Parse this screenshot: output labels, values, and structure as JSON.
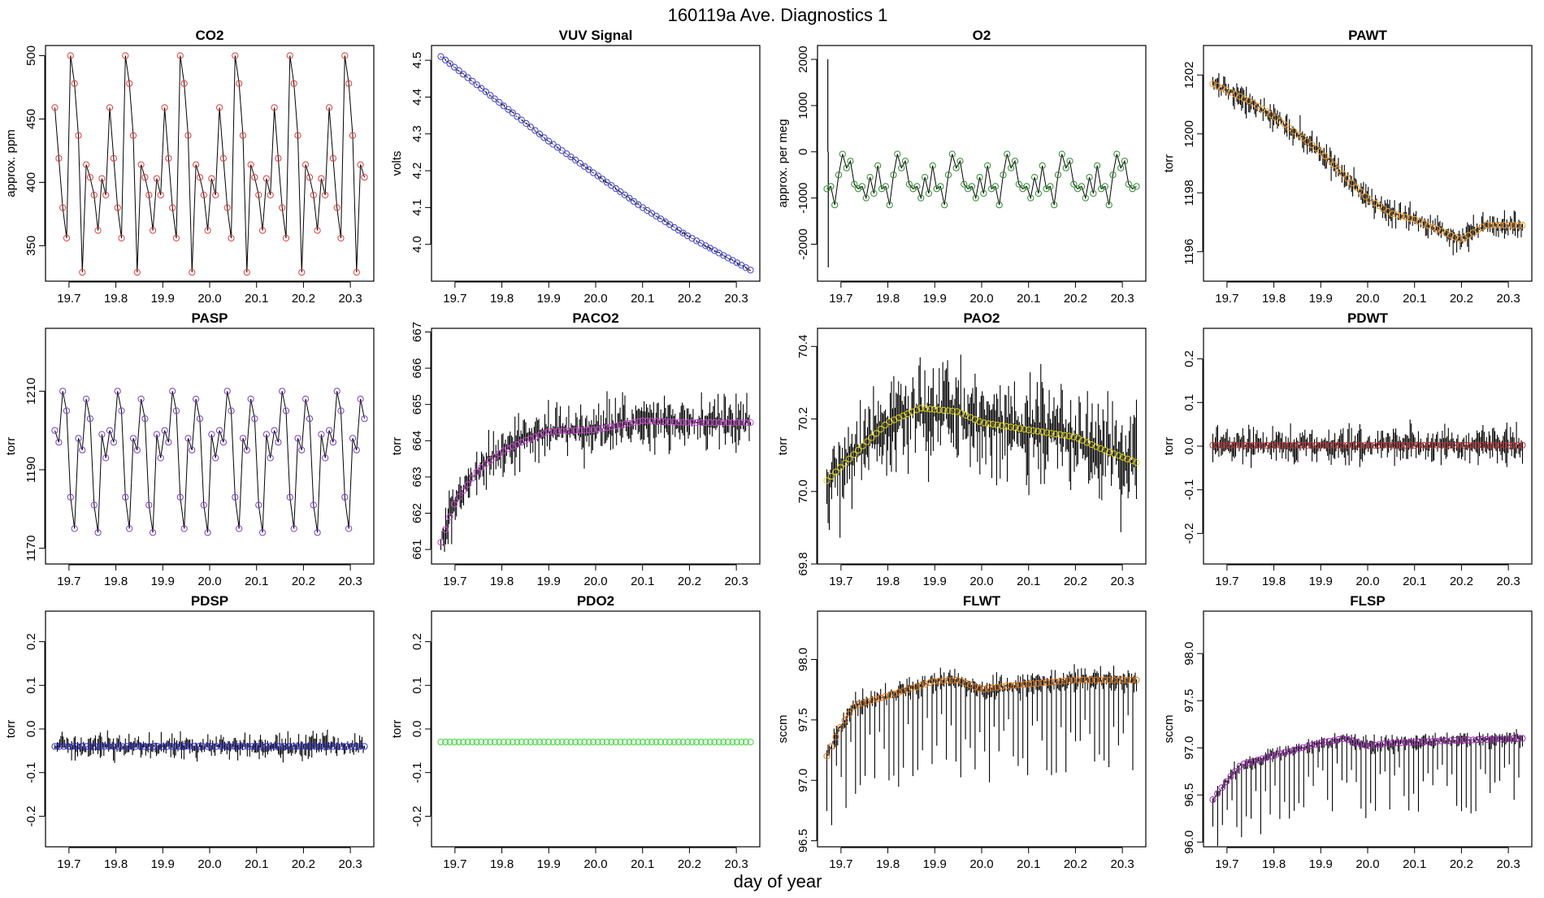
{
  "main_title": "160119a   Ave. Diagnostics 1",
  "x_axis_label": "day of year",
  "chart_data": [
    {
      "name": "co2",
      "type": "line",
      "title": "CO2",
      "ylabel": "approx. ppm",
      "xlim": [
        19.65,
        20.35
      ],
      "ylim": [
        322,
        508
      ],
      "xticks": [
        19.7,
        19.8,
        19.9,
        20.0,
        20.1,
        20.2,
        20.3
      ],
      "xtick_labels": [
        "19.7",
        "19.8",
        "19.9",
        "20.0",
        "20.1",
        "20.2",
        "20.3"
      ],
      "yticks": [
        350,
        400,
        450,
        500
      ],
      "ytick_labels": [
        "350",
        "400",
        "450",
        "500"
      ],
      "x_range": [
        19.67,
        20.33
      ],
      "pattern": "cycle",
      "cycle_levels": [
        459,
        419,
        380,
        356,
        500,
        478,
        437,
        329,
        414,
        404,
        390,
        362,
        403,
        390
      ],
      "point_color": "#e23b3b"
    },
    {
      "name": "vuv",
      "type": "line",
      "title": "VUV Signal",
      "ylabel": "volts",
      "xlim": [
        19.65,
        20.35
      ],
      "ylim": [
        3.9,
        4.54
      ],
      "xticks": [
        19.7,
        19.8,
        19.9,
        20.0,
        20.1,
        20.2,
        20.3
      ],
      "xtick_labels": [
        "19.7",
        "19.8",
        "19.9",
        "20.0",
        "20.1",
        "20.2",
        "20.3"
      ],
      "yticks": [
        4.0,
        4.1,
        4.2,
        4.3,
        4.4,
        4.5
      ],
      "ytick_labels": [
        "4.0",
        "4.1",
        "4.2",
        "4.3",
        "4.4",
        "4.5"
      ],
      "x_range": [
        19.67,
        20.33
      ],
      "pattern": "smooth",
      "points": [
        [
          19.67,
          4.51
        ],
        [
          19.8,
          4.38
        ],
        [
          19.9,
          4.28
        ],
        [
          20.0,
          4.19
        ],
        [
          20.1,
          4.1
        ],
        [
          20.2,
          4.02
        ],
        [
          20.33,
          3.93
        ]
      ],
      "noise": 0.003,
      "point_color": "#3b3bd8"
    },
    {
      "name": "o2",
      "type": "line",
      "title": "O2",
      "ylabel": "approx. per meg",
      "xlim": [
        19.65,
        20.35
      ],
      "ylim": [
        -2800,
        2300
      ],
      "xticks": [
        19.7,
        19.8,
        19.9,
        20.0,
        20.1,
        20.2,
        20.3
      ],
      "xtick_labels": [
        "19.7",
        "19.8",
        "19.9",
        "20.0",
        "20.1",
        "20.2",
        "20.3"
      ],
      "yticks": [
        -2000,
        -1000,
        0,
        1000,
        2000
      ],
      "ytick_labels": [
        "-2000",
        "-1000",
        "0",
        "1000",
        "2000"
      ],
      "x_range": [
        19.67,
        20.33
      ],
      "pattern": "cycle",
      "cycle_levels": [
        -800,
        -750,
        -1150,
        -500,
        -50,
        -350,
        -200,
        -700,
        -800,
        -750,
        -1000,
        -550,
        -900,
        -300
      ],
      "spike": [
        [
          19.672,
          2000
        ],
        [
          19.673,
          -2500
        ]
      ],
      "point_color": "#2e8b2e"
    },
    {
      "name": "pawt",
      "type": "line",
      "title": "PAWT",
      "ylabel": "torr",
      "xlim": [
        19.65,
        20.35
      ],
      "ylim": [
        1195,
        1203
      ],
      "xticks": [
        19.7,
        19.8,
        19.9,
        20.0,
        20.1,
        20.2,
        20.3
      ],
      "xtick_labels": [
        "19.7",
        "19.8",
        "19.9",
        "20.0",
        "20.1",
        "20.2",
        "20.3"
      ],
      "yticks": [
        1196,
        1198,
        1200,
        1202
      ],
      "ytick_labels": [
        "1196",
        "1198",
        "1200",
        "1202"
      ],
      "x_range": [
        19.67,
        20.33
      ],
      "pattern": "smooth",
      "points": [
        [
          19.67,
          1201.7
        ],
        [
          19.75,
          1201.1
        ],
        [
          19.8,
          1200.6
        ],
        [
          19.9,
          1199.4
        ],
        [
          20.0,
          1197.8
        ],
        [
          20.05,
          1197.3
        ],
        [
          20.1,
          1197.1
        ],
        [
          20.2,
          1196.4
        ],
        [
          20.25,
          1196.9
        ],
        [
          20.33,
          1196.9
        ]
      ],
      "noise": 0.35,
      "point_color": "#f2a030"
    },
    {
      "name": "pasp",
      "type": "line",
      "title": "PASP",
      "ylabel": "torr",
      "xlim": [
        19.65,
        20.35
      ],
      "ylim": [
        1166,
        1226
      ],
      "xticks": [
        19.7,
        19.8,
        19.9,
        20.0,
        20.1,
        20.2,
        20.3
      ],
      "xtick_labels": [
        "19.7",
        "19.8",
        "19.9",
        "20.0",
        "20.1",
        "20.2",
        "20.3"
      ],
      "yticks": [
        1170,
        1190,
        1210
      ],
      "ytick_labels": [
        "1170",
        "1190",
        "1210"
      ],
      "x_range": [
        19.67,
        20.33
      ],
      "pattern": "cycle",
      "cycle_levels": [
        1200,
        1197,
        1210,
        1205,
        1183,
        1175,
        1198,
        1195,
        1208,
        1203,
        1181,
        1174,
        1199,
        1193
      ],
      "point_color": "#7a3cc8"
    },
    {
      "name": "paco2",
      "type": "line",
      "title": "PACO2",
      "ylabel": "torr",
      "xlim": [
        19.65,
        20.35
      ],
      "ylim": [
        660.6,
        667.1
      ],
      "xticks": [
        19.7,
        19.8,
        19.9,
        20.0,
        20.1,
        20.2,
        20.3
      ],
      "xtick_labels": [
        "19.7",
        "19.8",
        "19.9",
        "20.0",
        "20.1",
        "20.2",
        "20.3"
      ],
      "yticks": [
        661,
        662,
        663,
        664,
        665,
        666,
        667
      ],
      "ytick_labels": [
        "661",
        "662",
        "663",
        "664",
        "665",
        "666",
        "667"
      ],
      "x_range": [
        19.67,
        20.33
      ],
      "pattern": "smooth",
      "points": [
        [
          19.67,
          661.2
        ],
        [
          19.7,
          662.3
        ],
        [
          19.75,
          663.2
        ],
        [
          19.8,
          663.7
        ],
        [
          19.85,
          664.0
        ],
        [
          19.9,
          664.25
        ],
        [
          20.0,
          664.3
        ],
        [
          20.1,
          664.55
        ],
        [
          20.2,
          664.5
        ],
        [
          20.33,
          664.5
        ]
      ],
      "noise": 0.5,
      "point_color": "#d04ad8"
    },
    {
      "name": "pao2",
      "type": "line",
      "title": "PAO2",
      "ylabel": "torr",
      "xlim": [
        19.65,
        20.35
      ],
      "ylim": [
        69.8,
        70.45
      ],
      "xticks": [
        19.7,
        19.8,
        19.9,
        20.0,
        20.1,
        20.2,
        20.3
      ],
      "xtick_labels": [
        "19.7",
        "19.8",
        "19.9",
        "20.0",
        "20.1",
        "20.2",
        "20.3"
      ],
      "yticks": [
        69.8,
        70.0,
        70.2,
        70.4
      ],
      "ytick_labels": [
        "69.8",
        "70.0",
        "70.2",
        "70.4"
      ],
      "x_range": [
        19.67,
        20.33
      ],
      "pattern": "smooth",
      "points": [
        [
          19.67,
          70.03
        ],
        [
          19.75,
          70.13
        ],
        [
          19.8,
          70.19
        ],
        [
          19.87,
          70.23
        ],
        [
          19.95,
          70.22
        ],
        [
          20.0,
          70.19
        ],
        [
          20.1,
          70.17
        ],
        [
          20.2,
          70.15
        ],
        [
          20.25,
          70.12
        ],
        [
          20.33,
          70.08
        ]
      ],
      "noise": 0.1,
      "point_color": "#e0d61a"
    },
    {
      "name": "pdwt",
      "type": "line",
      "title": "PDWT",
      "ylabel": "torr",
      "xlim": [
        19.65,
        20.35
      ],
      "ylim": [
        -0.27,
        0.27
      ],
      "xticks": [
        19.7,
        19.8,
        19.9,
        20.0,
        20.1,
        20.2,
        20.3
      ],
      "xtick_labels": [
        "19.7",
        "19.8",
        "19.9",
        "20.0",
        "20.1",
        "20.2",
        "20.3"
      ],
      "yticks": [
        -0.2,
        -0.1,
        0.0,
        0.1,
        0.2
      ],
      "ytick_labels": [
        "-0.2",
        "-0.1",
        "0.0",
        "0.1",
        "0.2"
      ],
      "x_range": [
        19.67,
        20.33
      ],
      "pattern": "smooth",
      "points": [
        [
          19.67,
          0.002
        ],
        [
          20.33,
          0.002
        ]
      ],
      "noise": 0.03,
      "point_color": "#c03030"
    },
    {
      "name": "pdsp",
      "type": "line",
      "title": "PDSP",
      "ylabel": "torr",
      "xlim": [
        19.65,
        20.35
      ],
      "ylim": [
        -0.27,
        0.27
      ],
      "xticks": [
        19.7,
        19.8,
        19.9,
        20.0,
        20.1,
        20.2,
        20.3
      ],
      "xtick_labels": [
        "19.7",
        "19.8",
        "19.9",
        "20.0",
        "20.1",
        "20.2",
        "20.3"
      ],
      "yticks": [
        -0.2,
        -0.1,
        0.0,
        0.1,
        0.2
      ],
      "ytick_labels": [
        "-0.2",
        "-0.1",
        "0.0",
        "0.1",
        "0.2"
      ],
      "x_range": [
        19.67,
        20.33
      ],
      "pattern": "smooth",
      "points": [
        [
          19.67,
          -0.04
        ],
        [
          20.33,
          -0.04
        ]
      ],
      "noise": 0.02,
      "point_color": "#2a2ad0"
    },
    {
      "name": "pdo2",
      "type": "line",
      "title": "PDO2",
      "ylabel": "torr",
      "xlim": [
        19.65,
        20.35
      ],
      "ylim": [
        -0.27,
        0.27
      ],
      "xticks": [
        19.7,
        19.8,
        19.9,
        20.0,
        20.1,
        20.2,
        20.3
      ],
      "xtick_labels": [
        "19.7",
        "19.8",
        "19.9",
        "20.0",
        "20.1",
        "20.2",
        "20.3"
      ],
      "yticks": [
        -0.2,
        -0.1,
        0.0,
        0.1,
        0.2
      ],
      "ytick_labels": [
        "-0.2",
        "-0.1",
        "0.0",
        "0.1",
        "0.2"
      ],
      "x_range": [
        19.67,
        20.33
      ],
      "pattern": "smooth",
      "points": [
        [
          19.67,
          -0.03
        ],
        [
          20.33,
          -0.03
        ]
      ],
      "noise": 0.0,
      "point_color": "#3ad83a"
    },
    {
      "name": "flwt",
      "type": "line",
      "title": "FLWT",
      "ylabel": "sccm",
      "xlim": [
        19.65,
        20.35
      ],
      "ylim": [
        96.45,
        98.4
      ],
      "xticks": [
        19.7,
        19.8,
        19.9,
        20.0,
        20.1,
        20.2,
        20.3
      ],
      "xtick_labels": [
        "19.7",
        "19.8",
        "19.9",
        "20.0",
        "20.1",
        "20.2",
        "20.3"
      ],
      "yticks": [
        96.5,
        97.0,
        97.5,
        98.0
      ],
      "ytick_labels": [
        "96.5",
        "97.0",
        "97.5",
        "98.0"
      ],
      "x_range": [
        19.67,
        20.33
      ],
      "pattern": "smooth",
      "points": [
        [
          19.67,
          97.2
        ],
        [
          19.7,
          97.45
        ],
        [
          19.73,
          97.62
        ],
        [
          19.8,
          97.7
        ],
        [
          19.9,
          97.82
        ],
        [
          19.95,
          97.83
        ],
        [
          20.0,
          97.75
        ],
        [
          20.05,
          97.78
        ],
        [
          20.2,
          97.83
        ],
        [
          20.33,
          97.83
        ]
      ],
      "noise": 0.07,
      "spiky": true,
      "point_color": "#e07a1a"
    },
    {
      "name": "flsp",
      "type": "line",
      "title": "FLSP",
      "ylabel": "sccm",
      "xlim": [
        19.65,
        20.35
      ],
      "ylim": [
        95.95,
        98.45
      ],
      "xticks": [
        19.7,
        19.8,
        19.9,
        20.0,
        20.1,
        20.2,
        20.3
      ],
      "xtick_labels": [
        "19.7",
        "19.8",
        "19.9",
        "20.0",
        "20.1",
        "20.2",
        "20.3"
      ],
      "yticks": [
        96.0,
        96.5,
        97.0,
        97.5,
        98.0
      ],
      "ytick_labels": [
        "96.0",
        "96.5",
        "97.0",
        "97.5",
        "98.0"
      ],
      "x_range": [
        19.67,
        20.33
      ],
      "pattern": "smooth",
      "points": [
        [
          19.67,
          96.45
        ],
        [
          19.7,
          96.65
        ],
        [
          19.73,
          96.82
        ],
        [
          19.8,
          96.92
        ],
        [
          19.9,
          97.05
        ],
        [
          19.95,
          97.1
        ],
        [
          20.0,
          97.02
        ],
        [
          20.05,
          97.05
        ],
        [
          20.2,
          97.08
        ],
        [
          20.33,
          97.1
        ]
      ],
      "noise": 0.06,
      "spiky": true,
      "point_color": "#a02ab8"
    }
  ]
}
